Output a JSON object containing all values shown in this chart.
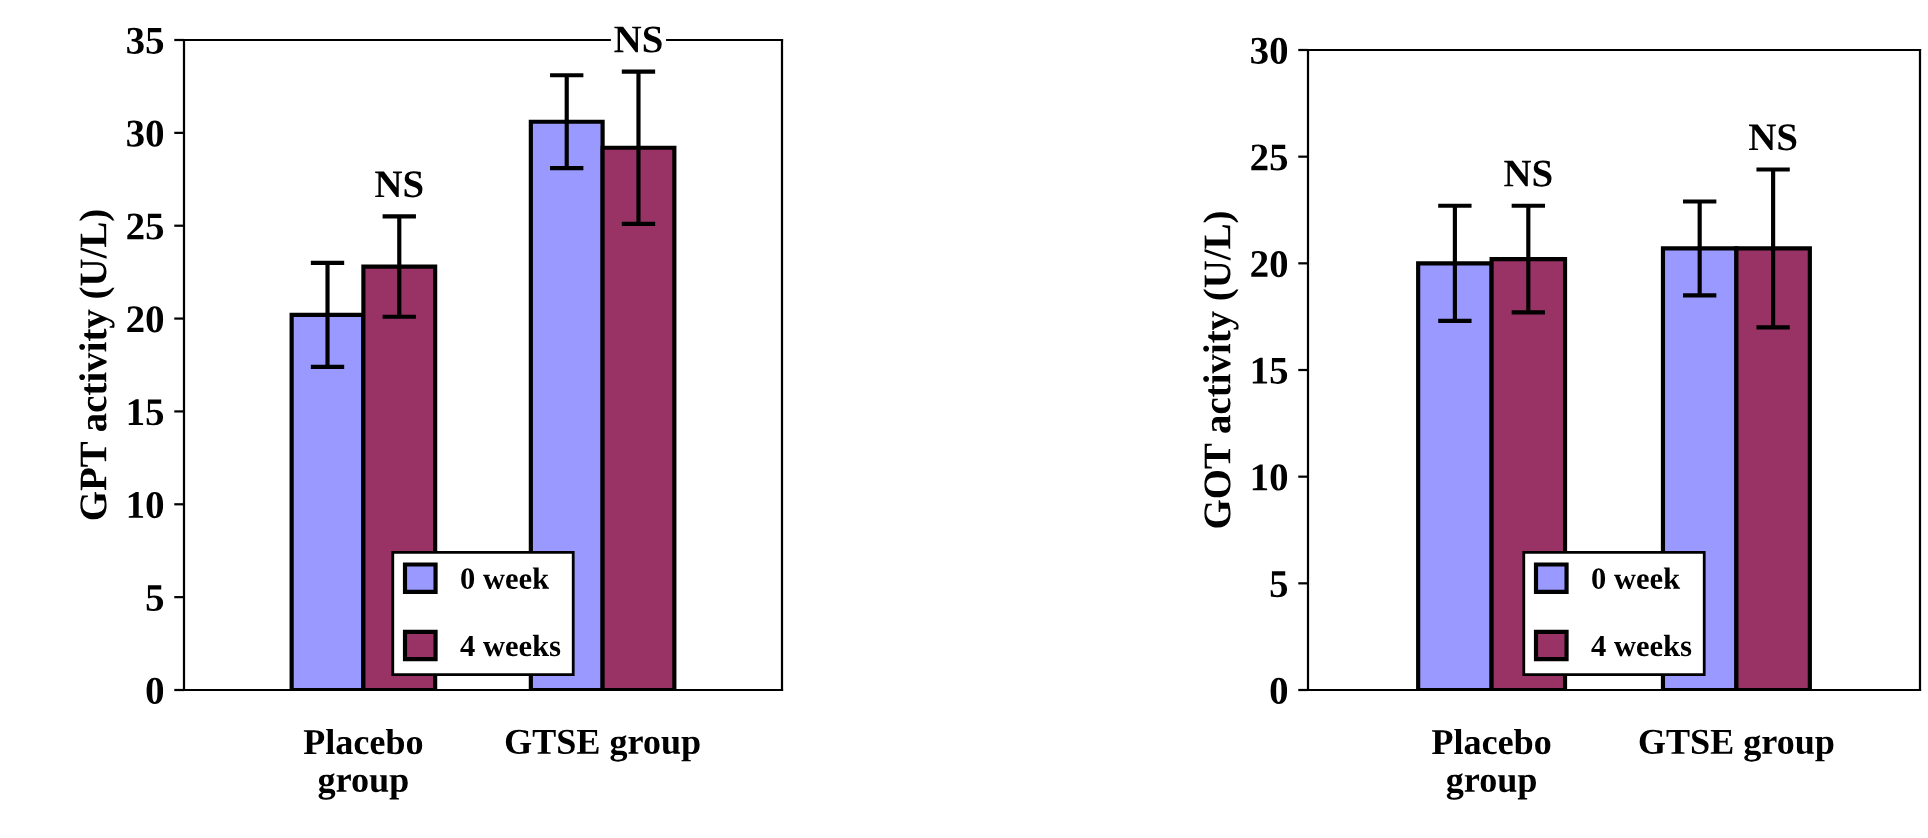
{
  "chart_data": [
    {
      "type": "bar",
      "ylabel": "GPT activity (U/L)",
      "categories": [
        "Placebo\ngroup",
        "GTSE group"
      ],
      "ylim": [
        0,
        35
      ],
      "yticks": [
        0,
        5,
        10,
        15,
        20,
        25,
        30,
        35
      ],
      "grid": false,
      "legend": "bottom",
      "series": [
        {
          "name": "0 week",
          "color": "#9999ff",
          "values": [
            20.2,
            30.6
          ],
          "errors": [
            2.8,
            2.5
          ]
        },
        {
          "name": "4 weeks",
          "color": "#993366",
          "values": [
            22.8,
            29.2
          ],
          "errors": [
            2.7,
            4.1
          ]
        }
      ],
      "annotations": [
        "NS",
        "NS"
      ]
    },
    {
      "type": "bar",
      "ylabel": "GOT activity (U/L)",
      "categories": [
        "Placebo\ngroup",
        "GTSE group"
      ],
      "ylim": [
        0,
        30
      ],
      "yticks": [
        0,
        5,
        10,
        15,
        20,
        25,
        30
      ],
      "grid": false,
      "legend": "bottom",
      "series": [
        {
          "name": "0 week",
          "color": "#9999ff",
          "values": [
            20.0,
            20.7
          ],
          "errors": [
            2.7,
            2.2
          ]
        },
        {
          "name": "4 weeks",
          "color": "#993366",
          "values": [
            20.2,
            20.7
          ],
          "errors": [
            2.5,
            3.7
          ]
        }
      ],
      "annotations": [
        "NS",
        "NS"
      ]
    }
  ]
}
